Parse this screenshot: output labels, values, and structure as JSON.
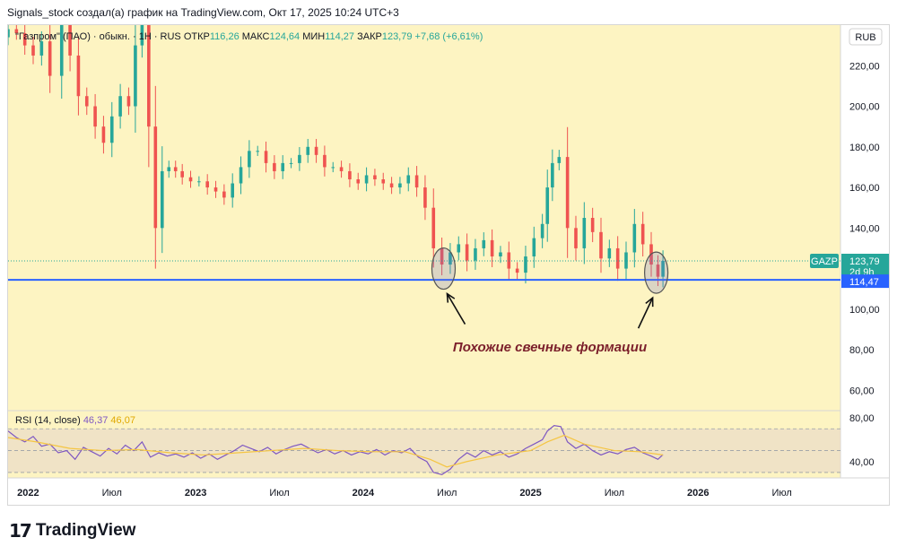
{
  "page": {
    "header": "Signals_stock создал(а) график на TradingView.com, Окт 17, 2025 10:24 UTC+3",
    "logo_text": "TradingView",
    "logo_mark": "17"
  },
  "colors": {
    "background": "#fdf4c2",
    "up": "#26a69a",
    "down": "#ef5350",
    "support_line": "#2962ff",
    "rsi_line": "#7e57c2",
    "rsi_ma": "#f5c542",
    "rsi_band": "#eadcc7",
    "annotation": "#7b1f2b"
  },
  "chart_data": [
    {
      "type": "candlestick",
      "legend": {
        "symbol": "\"Газпром\" (ПАО) · обыкн. · 1Н · RUS",
        "open_label": "ОТКР",
        "open": "116,26",
        "high_label": "МАКС",
        "high": "124,64",
        "low_label": "МИН",
        "low": "114,27",
        "close_label": "ЗАКР",
        "close": "123,79",
        "change": "+7,68 (+6,61%)"
      },
      "currency": "RUB",
      "y_ticks": [
        "220,00",
        "200,00",
        "180,00",
        "160,00",
        "140,00",
        "100,00",
        "80,00",
        "60,00"
      ],
      "y_tick_values": [
        220,
        200,
        180,
        160,
        140,
        100,
        80,
        60
      ],
      "ylim": [
        50,
        240
      ],
      "x_ticks": [
        "2022",
        "Июл",
        "2023",
        "Июл",
        "2024",
        "Июл",
        "2025",
        "Июл",
        "2026",
        "Июл"
      ],
      "x_tick_dates": [
        2022.0,
        2022.5,
        2023.0,
        2023.5,
        2024.0,
        2024.5,
        2025.0,
        2025.5,
        2026.0,
        2026.5
      ],
      "xlim": [
        2021.88,
        2026.85
      ],
      "support_level": 114.47,
      "support_label": "114,47",
      "last_price": 123.79,
      "last_price_label": "123,79",
      "ticker_badge": "GAZP",
      "countdown": "2d 9h",
      "annotation_text": "Похожие свечные формации",
      "closes": [
        [
          2021.88,
          238
        ],
        [
          2021.93,
          236
        ],
        [
          2021.98,
          230
        ],
        [
          2022.03,
          225
        ],
        [
          2022.08,
          232
        ],
        [
          2022.13,
          215
        ],
        [
          2022.2,
          240
        ],
        [
          2022.25,
          225
        ],
        [
          2022.3,
          205
        ],
        [
          2022.35,
          200
        ],
        [
          2022.4,
          190
        ],
        [
          2022.45,
          182
        ],
        [
          2022.5,
          195
        ],
        [
          2022.55,
          205
        ],
        [
          2022.6,
          200
        ],
        [
          2022.64,
          230
        ],
        [
          2022.68,
          240
        ],
        [
          2022.72,
          190
        ],
        [
          2022.76,
          140
        ],
        [
          2022.8,
          168
        ],
        [
          2022.84,
          170
        ],
        [
          2022.88,
          168
        ],
        [
          2022.92,
          165
        ],
        [
          2022.97,
          163
        ],
        [
          2023.02,
          163
        ],
        [
          2023.07,
          160
        ],
        [
          2023.12,
          158
        ],
        [
          2023.17,
          155
        ],
        [
          2023.22,
          162
        ],
        [
          2023.27,
          170
        ],
        [
          2023.32,
          178
        ],
        [
          2023.37,
          178
        ],
        [
          2023.42,
          172
        ],
        [
          2023.47,
          168
        ],
        [
          2023.52,
          172
        ],
        [
          2023.57,
          172
        ],
        [
          2023.62,
          176
        ],
        [
          2023.67,
          180
        ],
        [
          2023.72,
          176
        ],
        [
          2023.77,
          170
        ],
        [
          2023.82,
          170
        ],
        [
          2023.87,
          168
        ],
        [
          2023.92,
          164
        ],
        [
          2023.97,
          162
        ],
        [
          2024.02,
          166
        ],
        [
          2024.07,
          164
        ],
        [
          2024.12,
          162
        ],
        [
          2024.17,
          160
        ],
        [
          2024.22,
          162
        ],
        [
          2024.27,
          166
        ],
        [
          2024.32,
          160
        ],
        [
          2024.37,
          150
        ],
        [
          2024.42,
          130
        ],
        [
          2024.47,
          122
        ],
        [
          2024.52,
          128
        ],
        [
          2024.57,
          132
        ],
        [
          2024.62,
          124
        ],
        [
          2024.67,
          130
        ],
        [
          2024.72,
          134
        ],
        [
          2024.77,
          126
        ],
        [
          2024.82,
          128
        ],
        [
          2024.87,
          120
        ],
        [
          2024.92,
          118
        ],
        [
          2024.97,
          126
        ],
        [
          2025.02,
          135
        ],
        [
          2025.07,
          142
        ],
        [
          2025.1,
          160
        ],
        [
          2025.13,
          172
        ],
        [
          2025.17,
          175
        ],
        [
          2025.22,
          140
        ],
        [
          2025.27,
          130
        ],
        [
          2025.32,
          145
        ],
        [
          2025.37,
          138
        ],
        [
          2025.42,
          125
        ],
        [
          2025.47,
          130
        ],
        [
          2025.52,
          120
        ],
        [
          2025.57,
          128
        ],
        [
          2025.62,
          142
        ],
        [
          2025.67,
          132
        ],
        [
          2025.72,
          122
        ],
        [
          2025.76,
          116
        ],
        [
          2025.79,
          123.79
        ]
      ],
      "annotated_zones": [
        {
          "x": 2024.48,
          "y": 120
        },
        {
          "x": 2025.75,
          "y": 118
        }
      ]
    },
    {
      "type": "line",
      "title": "RSI (14, close)",
      "rsi_value": "46,37",
      "ma_value": "46,07",
      "y_ticks": [
        "80,00",
        "40,00"
      ],
      "y_tick_values": [
        80,
        40
      ],
      "ylim": [
        25,
        85
      ],
      "band": [
        30,
        70
      ],
      "mid": 50,
      "values": [
        [
          2021.88,
          68
        ],
        [
          2021.93,
          62
        ],
        [
          2021.98,
          58
        ],
        [
          2022.03,
          63
        ],
        [
          2022.08,
          54
        ],
        [
          2022.13,
          56
        ],
        [
          2022.18,
          48
        ],
        [
          2022.23,
          50
        ],
        [
          2022.28,
          42
        ],
        [
          2022.33,
          53
        ],
        [
          2022.38,
          49
        ],
        [
          2022.43,
          45
        ],
        [
          2022.48,
          52
        ],
        [
          2022.53,
          47
        ],
        [
          2022.58,
          55
        ],
        [
          2022.63,
          50
        ],
        [
          2022.68,
          58
        ],
        [
          2022.73,
          44
        ],
        [
          2022.78,
          48
        ],
        [
          2022.83,
          45
        ],
        [
          2022.88,
          47
        ],
        [
          2022.93,
          44
        ],
        [
          2022.98,
          48
        ],
        [
          2023.03,
          43
        ],
        [
          2023.08,
          47
        ],
        [
          2023.13,
          42
        ],
        [
          2023.18,
          46
        ],
        [
          2023.23,
          50
        ],
        [
          2023.28,
          55
        ],
        [
          2023.33,
          52
        ],
        [
          2023.38,
          49
        ],
        [
          2023.43,
          53
        ],
        [
          2023.48,
          47
        ],
        [
          2023.53,
          51
        ],
        [
          2023.58,
          54
        ],
        [
          2023.63,
          56
        ],
        [
          2023.68,
          52
        ],
        [
          2023.73,
          48
        ],
        [
          2023.78,
          51
        ],
        [
          2023.83,
          47
        ],
        [
          2023.88,
          50
        ],
        [
          2023.93,
          46
        ],
        [
          2023.98,
          49
        ],
        [
          2024.03,
          47
        ],
        [
          2024.08,
          51
        ],
        [
          2024.13,
          46
        ],
        [
          2024.18,
          50
        ],
        [
          2024.23,
          48
        ],
        [
          2024.28,
          52
        ],
        [
          2024.33,
          44
        ],
        [
          2024.38,
          40
        ],
        [
          2024.42,
          30
        ],
        [
          2024.47,
          28
        ],
        [
          2024.52,
          33
        ],
        [
          2024.57,
          42
        ],
        [
          2024.62,
          48
        ],
        [
          2024.67,
          44
        ],
        [
          2024.72,
          50
        ],
        [
          2024.77,
          46
        ],
        [
          2024.82,
          49
        ],
        [
          2024.87,
          44
        ],
        [
          2024.92,
          47
        ],
        [
          2024.97,
          52
        ],
        [
          2025.02,
          56
        ],
        [
          2025.07,
          60
        ],
        [
          2025.1,
          68
        ],
        [
          2025.14,
          73
        ],
        [
          2025.18,
          72
        ],
        [
          2025.22,
          58
        ],
        [
          2025.27,
          52
        ],
        [
          2025.32,
          56
        ],
        [
          2025.37,
          50
        ],
        [
          2025.42,
          46
        ],
        [
          2025.47,
          49
        ],
        [
          2025.52,
          47
        ],
        [
          2025.57,
          51
        ],
        [
          2025.62,
          53
        ],
        [
          2025.67,
          48
        ],
        [
          2025.72,
          45
        ],
        [
          2025.76,
          42
        ],
        [
          2025.79,
          46.37
        ]
      ],
      "ma_values": [
        [
          2021.88,
          62
        ],
        [
          2022.05,
          58
        ],
        [
          2022.25,
          52
        ],
        [
          2022.45,
          50
        ],
        [
          2022.65,
          51
        ],
        [
          2022.85,
          48
        ],
        [
          2023.05,
          46
        ],
        [
          2023.25,
          48
        ],
        [
          2023.45,
          50
        ],
        [
          2023.65,
          52
        ],
        [
          2023.85,
          50
        ],
        [
          2024.05,
          49
        ],
        [
          2024.25,
          49
        ],
        [
          2024.4,
          42
        ],
        [
          2024.5,
          35
        ],
        [
          2024.62,
          40
        ],
        [
          2024.8,
          46
        ],
        [
          2025.0,
          50
        ],
        [
          2025.1,
          58
        ],
        [
          2025.2,
          64
        ],
        [
          2025.32,
          56
        ],
        [
          2025.5,
          50
        ],
        [
          2025.65,
          49
        ],
        [
          2025.79,
          46.07
        ]
      ]
    }
  ]
}
